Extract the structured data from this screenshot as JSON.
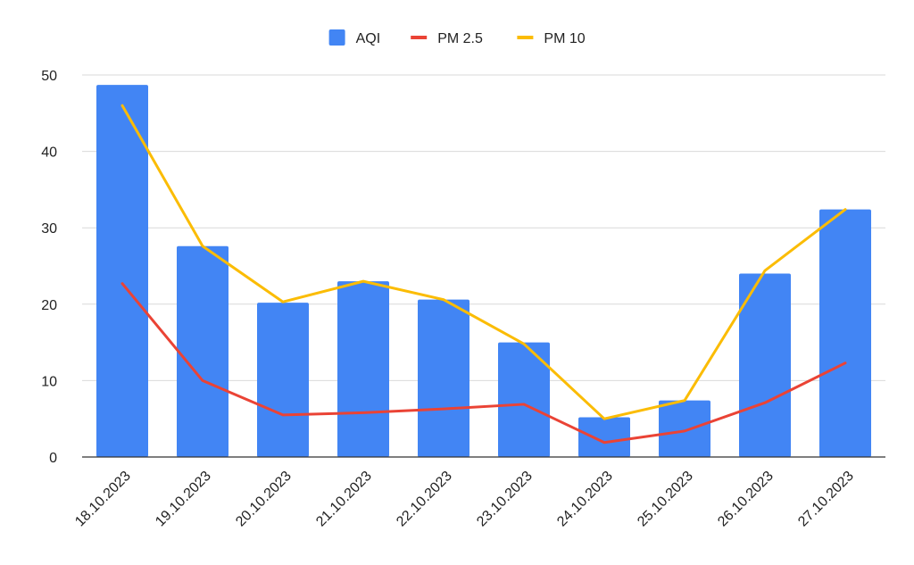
{
  "chart_data": {
    "type": "bar",
    "title": "",
    "xlabel": "",
    "ylabel": "",
    "ylim": [
      0,
      50
    ],
    "yticks": [
      0,
      10,
      20,
      30,
      40,
      50
    ],
    "grid": true,
    "legend_position": "top-center",
    "categories": [
      "18.10.2023",
      "19.10.2023",
      "20.10.2023",
      "21.10.2023",
      "22.10.2023",
      "23.10.2023",
      "24.10.2023",
      "25.10.2023",
      "26.10.2023",
      "27.10.2023"
    ],
    "series": [
      {
        "name": "AQI",
        "type": "bar",
        "color": "#4285f4",
        "values": [
          48.7,
          27.6,
          20.2,
          23.0,
          20.6,
          15.0,
          5.2,
          7.4,
          24.0,
          32.4
        ]
      },
      {
        "name": "PM 2.5",
        "type": "line",
        "color": "#ea4335",
        "values": [
          22.7,
          10.0,
          5.5,
          5.8,
          6.3,
          6.9,
          1.9,
          3.4,
          7.1,
          12.3
        ]
      },
      {
        "name": "PM 10",
        "type": "line",
        "color": "#fbbc04",
        "values": [
          46.0,
          27.6,
          20.3,
          23.0,
          20.6,
          14.8,
          5.0,
          7.4,
          24.4,
          32.4
        ]
      }
    ]
  }
}
